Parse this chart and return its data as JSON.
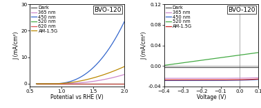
{
  "plot1": {
    "title": "BVO-120",
    "xlabel": "Potential vs RHE (V)",
    "ylabel": "J (mA/cm²)",
    "xlim": [
      0.6,
      2.0
    ],
    "ylim": [
      -1,
      30
    ],
    "yticks": [
      0,
      10,
      20,
      30
    ],
    "xticks": [
      0.5,
      1.0,
      1.5,
      2.0
    ],
    "lines": {
      "Dark": {
        "color": "#555555",
        "lw": 0.9
      },
      "365 nm": {
        "color": "#cc88cc",
        "lw": 0.9
      },
      "450 nm": {
        "color": "#3366cc",
        "lw": 0.9
      },
      "520 nm": {
        "color": "#44aa44",
        "lw": 0.9
      },
      "620 nm": {
        "color": "#dd5555",
        "lw": 0.9
      },
      "AM-1.5G": {
        "color": "#bb8800",
        "lw": 0.9
      }
    },
    "legend_order": [
      "Dark",
      "365 nm",
      "450 nm",
      "520 nm",
      "620 nm",
      "AM-1.5G"
    ]
  },
  "plot2": {
    "title": "BVO-120",
    "xlabel": "Voltage (V)",
    "ylabel": "J (mA/cm²)",
    "xlim": [
      -0.4,
      0.1
    ],
    "ylim": [
      -0.04,
      0.12
    ],
    "yticks": [
      -0.04,
      0.0,
      0.04,
      0.08,
      0.12
    ],
    "ytick_labels": [
      "-0.04",
      "0.00",
      "0.04",
      "0.08",
      "0.12"
    ],
    "xticks": [
      -0.4,
      -0.3,
      -0.2,
      -0.1,
      0.0,
      0.1
    ],
    "vline": 0.0,
    "hline": 0.0,
    "lines": {
      "Dark": {
        "color": "#555555",
        "lw": 0.9
      },
      "365 nm": {
        "color": "#cc88cc",
        "lw": 0.9
      },
      "450 nm": {
        "color": "#3366cc",
        "lw": 0.9
      },
      "520 nm": {
        "color": "#44aa44",
        "lw": 0.9
      },
      "AM-1.5G": {
        "color": "#cc2222",
        "lw": 0.9
      }
    },
    "legend_order": [
      "Dark",
      "365 nm",
      "450 nm",
      "520 nm",
      "AM-1.5G"
    ]
  },
  "background_color": "#ffffff",
  "font_size": 5.5,
  "legend_font_size": 4.8,
  "title_font_size": 6.5
}
